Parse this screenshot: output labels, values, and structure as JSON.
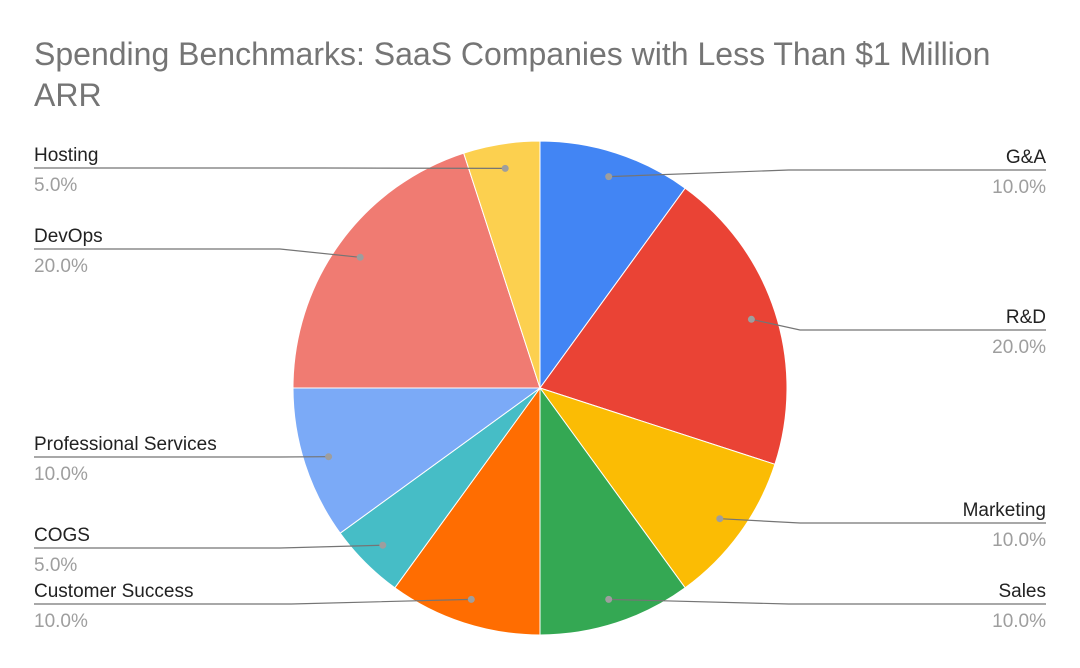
{
  "chart_data": {
    "type": "pie",
    "title": "Spending Benchmarks: SaaS Companies with Less Than $1 Million ARR",
    "slices": [
      {
        "label": "G&A",
        "value": 10.0,
        "value_label": "10.0%",
        "color": "#4285F4",
        "side": "right"
      },
      {
        "label": "R&D",
        "value": 20.0,
        "value_label": "20.0%",
        "color": "#EA4335",
        "side": "right"
      },
      {
        "label": "Marketing",
        "value": 10.0,
        "value_label": "10.0%",
        "color": "#FBBC04",
        "side": "right"
      },
      {
        "label": "Sales",
        "value": 10.0,
        "value_label": "10.0%",
        "color": "#34A853",
        "side": "right"
      },
      {
        "label": "Customer Success",
        "value": 10.0,
        "value_label": "10.0%",
        "color": "#FF6D01",
        "side": "left"
      },
      {
        "label": "COGS",
        "value": 5.0,
        "value_label": "5.0%",
        "color": "#46BDC6",
        "side": "left"
      },
      {
        "label": "Professional Services",
        "value": 10.0,
        "value_label": "10.0%",
        "color": "#7BAAF7",
        "side": "left"
      },
      {
        "label": "DevOps",
        "value": 20.0,
        "value_label": "20.0%",
        "color": "#F07B72",
        "side": "left"
      },
      {
        "label": "Hosting",
        "value": 5.0,
        "value_label": "5.0%",
        "color": "#FCD04F",
        "side": "left"
      }
    ],
    "legend": "none"
  }
}
